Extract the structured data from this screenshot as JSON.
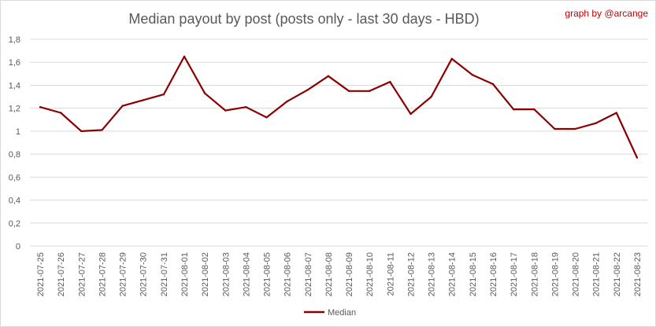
{
  "credit": "graph by @arcange",
  "colors": {
    "series": "#8b0000",
    "grid": "#d9d9d9",
    "text": "#595959",
    "credit": "#c00000"
  },
  "chart_data": {
    "type": "line",
    "title": "Median payout by post (posts only - last 30 days - HBD)",
    "xlabel": "",
    "ylabel": "",
    "ylim": [
      0,
      1.8
    ],
    "yticks": [
      "0",
      "0,2",
      "0,4",
      "0,6",
      "0,8",
      "1",
      "1,2",
      "1,4",
      "1,6",
      "1,8"
    ],
    "grid": true,
    "legend": "bottom",
    "categories": [
      "2021-07-25",
      "2021-07-26",
      "2021-07-27",
      "2021-07-28",
      "2021-07-29",
      "2021-07-30",
      "2021-07-31",
      "2021-08-01",
      "2021-08-02",
      "2021-08-03",
      "2021-08-04",
      "2021-08-05",
      "2021-08-06",
      "2021-08-07",
      "2021-08-08",
      "2021-08-09",
      "2021-08-10",
      "2021-08-11",
      "2021-08-12",
      "2021-08-13",
      "2021-08-14",
      "2021-08-15",
      "2021-08-16",
      "2021-08-17",
      "2021-08-18",
      "2021-08-19",
      "2021-08-20",
      "2021-08-21",
      "2021-08-22",
      "2021-08-23"
    ],
    "series": [
      {
        "name": "Median",
        "values": [
          1.21,
          1.16,
          1.0,
          1.01,
          1.22,
          1.27,
          1.32,
          1.65,
          1.33,
          1.18,
          1.21,
          1.12,
          1.26,
          1.36,
          1.48,
          1.35,
          1.35,
          1.43,
          1.15,
          1.3,
          1.63,
          1.49,
          1.41,
          1.19,
          1.19,
          1.02,
          1.02,
          1.07,
          1.16,
          0.77
        ]
      }
    ]
  }
}
